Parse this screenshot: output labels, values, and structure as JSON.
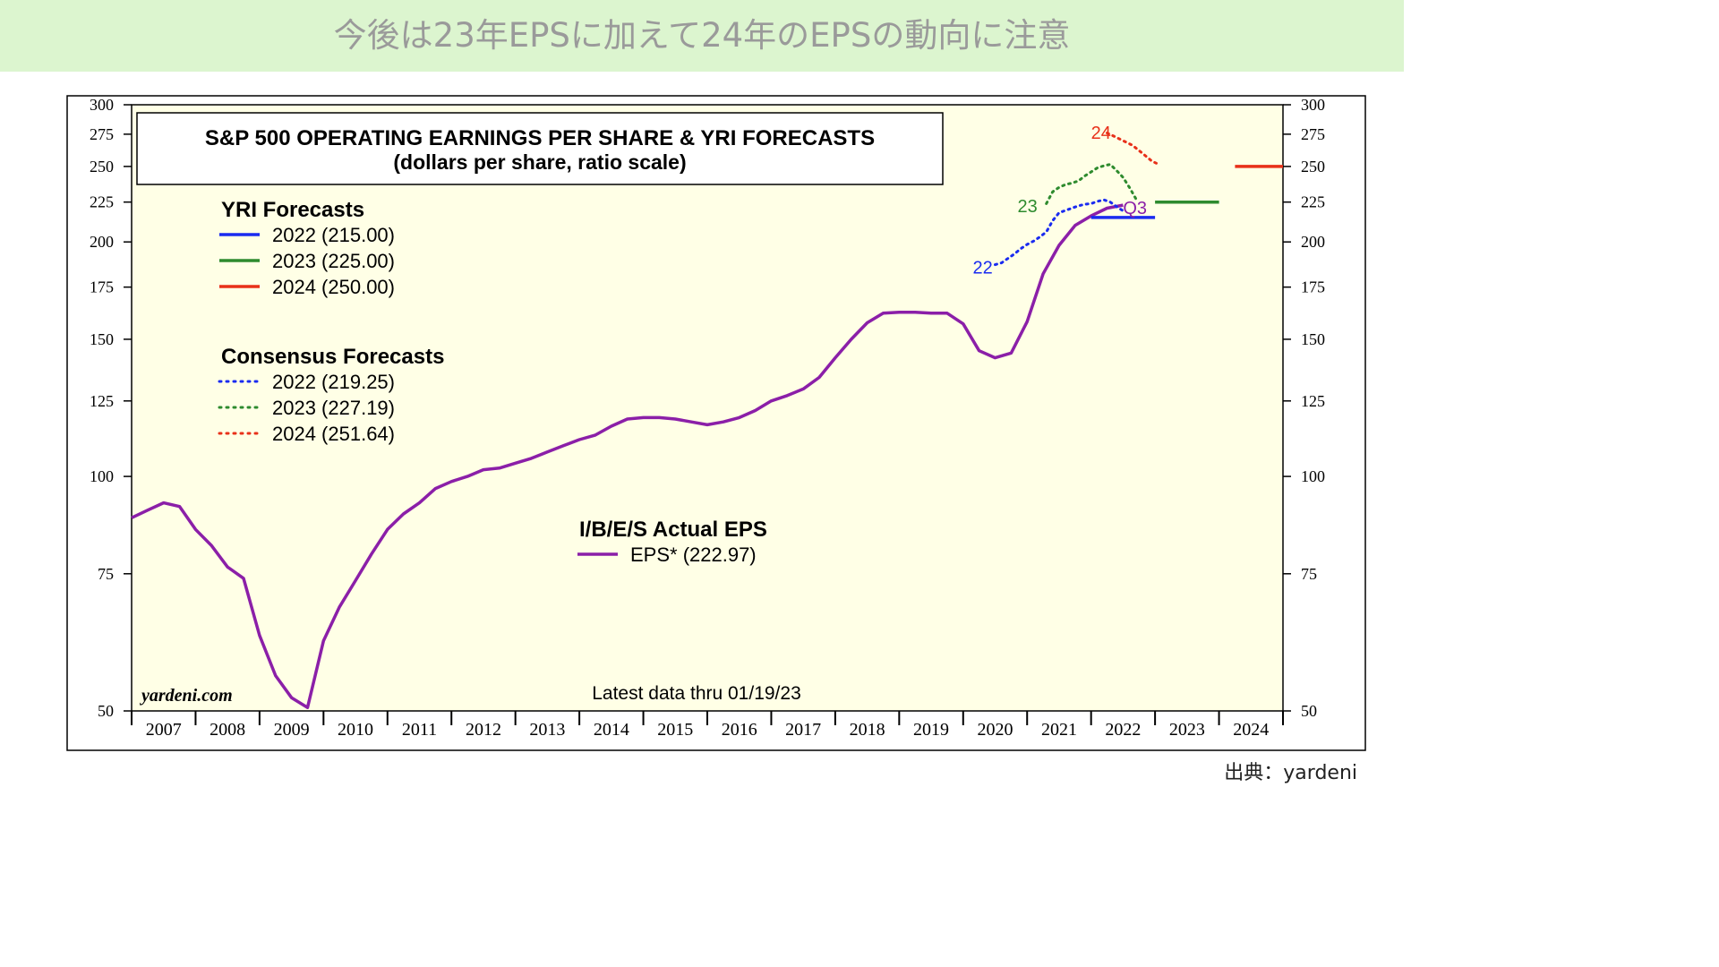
{
  "banner": {
    "title": "今後は23年EPSに加えて24年のEPSの動向に注意"
  },
  "source": {
    "text": "出典：yardeni"
  },
  "chart_data": {
    "type": "line",
    "title": "S&P 500 OPERATING EARNINGS PER SHARE & YRI FORECASTS",
    "subtitle": "(dollars per share, ratio scale)",
    "y_scale": "log",
    "ylim": [
      50,
      300
    ],
    "xlim": [
      2007,
      2025
    ],
    "grid": false,
    "background": "#ffffe6",
    "yticks": [
      300,
      275,
      250,
      225,
      200,
      175,
      150,
      125,
      100,
      75,
      50
    ],
    "xticks": [
      "2007",
      "2008",
      "2009",
      "2010",
      "2011",
      "2012",
      "2013",
      "2014",
      "2015",
      "2016",
      "2017",
      "2018",
      "2019",
      "2020",
      "2021",
      "2022",
      "2023",
      "2024"
    ],
    "watermark": "yardeni.com",
    "footnote": "Latest data thru 01/19/23",
    "legend_groups": [
      {
        "title": "YRI Forecasts",
        "style": "solid",
        "items": [
          {
            "label": "2022 (215.00)",
            "color": "#1a2bf0"
          },
          {
            "label": "2023 (225.00)",
            "color": "#2e8b2e"
          },
          {
            "label": "2024 (250.00)",
            "color": "#e8311a"
          }
        ]
      },
      {
        "title": "Consensus Forecasts",
        "style": "dotted",
        "items": [
          {
            "label": "2022 (219.25)",
            "color": "#1a2bf0"
          },
          {
            "label": "2023 (227.19)",
            "color": "#2e8b2e"
          },
          {
            "label": "2024 (251.64)",
            "color": "#e8311a"
          }
        ]
      },
      {
        "title": "I/B/E/S Actual EPS",
        "style": "solid",
        "items": [
          {
            "label": "EPS* (222.97)",
            "color": "#8b1fa8"
          }
        ]
      }
    ],
    "annotations": [
      {
        "text": "22",
        "x": 2020.15,
        "y": 186,
        "color": "#1a2bf0"
      },
      {
        "text": "23",
        "x": 2020.85,
        "y": 223,
        "color": "#2e8b2e"
      },
      {
        "text": "24",
        "x": 2022.0,
        "y": 277,
        "color": "#e8311a"
      },
      {
        "text": "Q3",
        "x": 2022.5,
        "y": 222,
        "color": "#8b1fa8"
      }
    ],
    "series": [
      {
        "name": "EPS* (222.97)",
        "color": "#8b1fa8",
        "style": "solid",
        "x": [
          2007.0,
          2007.25,
          2007.5,
          2007.75,
          2008.0,
          2008.25,
          2008.5,
          2008.75,
          2009.0,
          2009.25,
          2009.5,
          2009.75,
          2010.0,
          2010.25,
          2010.5,
          2010.75,
          2011.0,
          2011.25,
          2011.5,
          2011.75,
          2012.0,
          2012.25,
          2012.5,
          2012.75,
          2013.0,
          2013.25,
          2013.5,
          2013.75,
          2014.0,
          2014.25,
          2014.5,
          2014.75,
          2015.0,
          2015.25,
          2015.5,
          2015.75,
          2016.0,
          2016.25,
          2016.5,
          2016.75,
          2017.0,
          2017.25,
          2017.5,
          2017.75,
          2018.0,
          2018.25,
          2018.5,
          2018.75,
          2019.0,
          2019.25,
          2019.5,
          2019.75,
          2020.0,
          2020.25,
          2020.5,
          2020.75,
          2021.0,
          2021.25,
          2021.5,
          2021.75,
          2022.0,
          2022.25,
          2022.5
        ],
        "y": [
          88.5,
          90.5,
          92.5,
          91.5,
          85.5,
          81.5,
          76.5,
          74.0,
          62.5,
          55.5,
          52.0,
          50.5,
          61.5,
          68.0,
          73.5,
          79.5,
          85.5,
          89.5,
          92.5,
          96.5,
          98.5,
          100.0,
          102.0,
          102.5,
          104.0,
          105.5,
          107.5,
          109.5,
          111.5,
          113.0,
          116.0,
          118.5,
          119.0,
          119.0,
          118.5,
          117.5,
          116.5,
          117.5,
          119.0,
          121.5,
          125.0,
          127.0,
          129.5,
          134.0,
          142.0,
          150.0,
          157.5,
          162.0,
          162.5,
          162.5,
          162.0,
          162.0,
          157.0,
          145.0,
          142.0,
          144.0,
          158.0,
          182.0,
          198.0,
          210.0,
          216.0,
          221.0,
          223.0
        ]
      },
      {
        "name": "2022 (219.25)",
        "color": "#1a2bf0",
        "style": "dotted",
        "x": [
          2020.5,
          2020.6,
          2020.7,
          2020.8,
          2020.9,
          2021.0,
          2021.1,
          2021.2,
          2021.3,
          2021.4,
          2021.5,
          2021.6,
          2021.7,
          2021.8,
          2021.9,
          2022.0,
          2022.1,
          2022.2,
          2022.3,
          2022.4,
          2022.5
        ],
        "y": [
          187.0,
          188.0,
          190.5,
          193.0,
          196.0,
          198.5,
          200.5,
          203.0,
          206.0,
          213.0,
          218.0,
          219.5,
          221.0,
          222.5,
          223.5,
          224.0,
          225.5,
          226.5,
          225.0,
          222.0,
          219.25
        ]
      },
      {
        "name": "2023 (227.19)",
        "color": "#2e8b2e",
        "style": "dotted",
        "x": [
          2021.3,
          2021.4,
          2021.5,
          2021.6,
          2021.7,
          2021.8,
          2021.9,
          2022.0,
          2022.1,
          2022.2,
          2022.3,
          2022.4,
          2022.5,
          2022.6,
          2022.7
        ],
        "y": [
          224.0,
          232.0,
          235.0,
          237.0,
          238.0,
          239.5,
          243.0,
          246.0,
          249.0,
          250.5,
          251.5,
          247.0,
          242.0,
          235.0,
          227.19
        ]
      },
      {
        "name": "2024 (251.64)",
        "color": "#e8311a",
        "style": "dotted",
        "x": [
          2022.25,
          2022.35,
          2022.45,
          2022.55,
          2022.65,
          2022.75,
          2022.85,
          2022.95,
          2023.05
        ],
        "y": [
          276.0,
          273.5,
          271.0,
          268.5,
          266.0,
          262.0,
          258.0,
          254.0,
          251.64
        ]
      },
      {
        "name": "2022 (215.00)",
        "color": "#1a2bf0",
        "style": "solid",
        "x": [
          2022.0,
          2023.0
        ],
        "y": [
          215.0,
          215.0
        ]
      },
      {
        "name": "2023 (225.00)",
        "color": "#2e8b2e",
        "style": "solid",
        "x": [
          2023.0,
          2024.0
        ],
        "y": [
          225.0,
          225.0
        ]
      },
      {
        "name": "2024 (250.00)",
        "color": "#e8311a",
        "style": "solid",
        "x": [
          2024.25,
          2025.0
        ],
        "y": [
          250.0,
          250.0
        ]
      }
    ]
  }
}
